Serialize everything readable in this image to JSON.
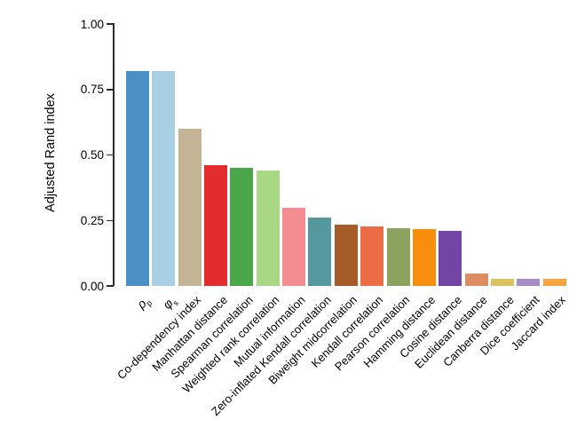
{
  "chart_data": {
    "type": "bar",
    "title": "",
    "xlabel": "",
    "ylabel": "Adjusted Rand index",
    "ylim": [
      0,
      1.0
    ],
    "grid": false,
    "legend": false,
    "yticks": [
      0,
      0.25,
      0.5,
      0.75,
      1.0
    ],
    "ytick_labels": [
      "0.00",
      "0.25",
      "0.50",
      "0.75",
      "1.00"
    ],
    "categories": [
      {
        "text": "ρ",
        "sub": "p",
        "greek": true
      },
      {
        "text": "φ",
        "sub": "s",
        "greek": true
      },
      {
        "text": "Co-dependency index"
      },
      {
        "text": "Manhattan distance"
      },
      {
        "text": "Spearman correlation"
      },
      {
        "text": "Weighted rank correlation"
      },
      {
        "text": "Mutual information"
      },
      {
        "text": "Zero-inflated Kendall correlation"
      },
      {
        "text": "Biweight midcorrelation"
      },
      {
        "text": "Kendall correlation"
      },
      {
        "text": "Pearson correlation"
      },
      {
        "text": "Hamming distance"
      },
      {
        "text": "Cosine distance"
      },
      {
        "text": "Euclidean distance"
      },
      {
        "text": "Canberra distance"
      },
      {
        "text": "Dice coefficient"
      },
      {
        "text": "Jaccard index"
      }
    ],
    "values": [
      0.82,
      0.82,
      0.6,
      0.46,
      0.45,
      0.44,
      0.3,
      0.26,
      0.235,
      0.228,
      0.222,
      0.216,
      0.21,
      0.048,
      0.028,
      0.028,
      0.026
    ],
    "colors": [
      "#4a90c4",
      "#a9cfe5",
      "#c4b496",
      "#e22c2e",
      "#4ba649",
      "#a9d884",
      "#f48d91",
      "#55999f",
      "#a55c29",
      "#ec6c45",
      "#8ca35f",
      "#f98e0c",
      "#7245a5",
      "#dd8d61",
      "#d9c360",
      "#a58dc6",
      "#f9a341"
    ]
  }
}
